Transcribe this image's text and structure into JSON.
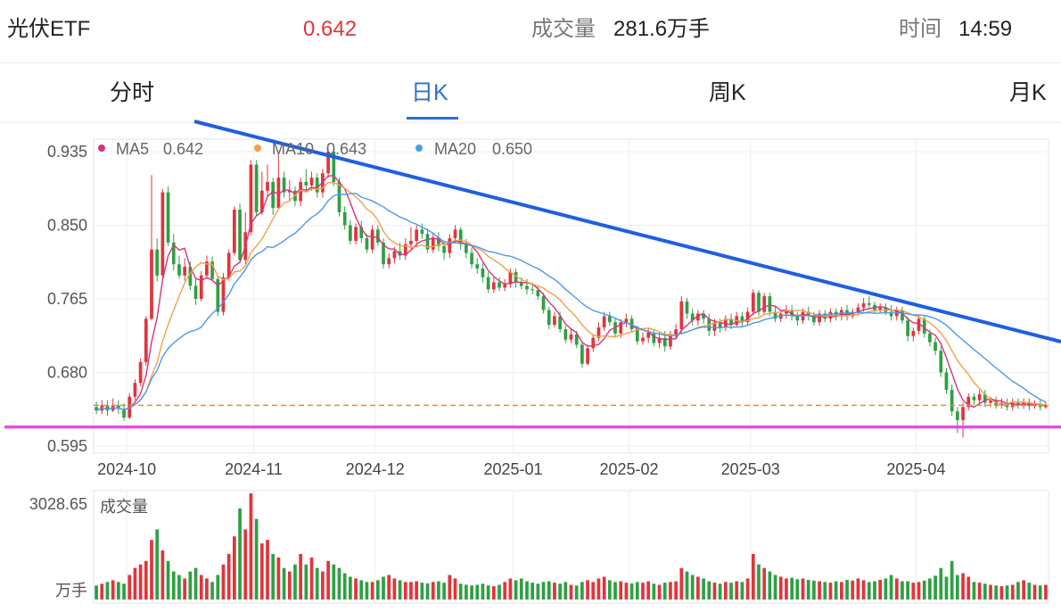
{
  "header": {
    "name": "光伏ETF",
    "price": "0.642",
    "volume_label": "成交量",
    "volume_value": "281.6万手",
    "time_label": "时间",
    "time_value": "14:59"
  },
  "tabs": [
    {
      "label": "分时",
      "active": false
    },
    {
      "label": "日K",
      "active": true
    },
    {
      "label": "周K",
      "active": false
    },
    {
      "label": "月K",
      "active": false
    }
  ],
  "legend": {
    "ma5": {
      "label": "MA5",
      "value": "0.642",
      "color": "#d6337e"
    },
    "ma10": {
      "label": "MA10",
      "value": "0.643",
      "color": "#f0a04b"
    },
    "ma20": {
      "label": "MA20",
      "value": "0.650",
      "color": "#4a9be8"
    }
  },
  "colors": {
    "up": "#e0353b",
    "down": "#2ea043",
    "price": "#e0353b",
    "active_tab": "#2b6fd6",
    "trendline": "#1f5fe0",
    "support": "#e64ce6",
    "last_price_line": "#f08a24"
  },
  "volume_panel": {
    "label": "成交量",
    "max_label": "3028.65",
    "unit": "万手"
  },
  "chart_data": {
    "type": "candlestick",
    "y_ticks": [
      "0.935",
      "0.850",
      "0.765",
      "0.680",
      "0.595"
    ],
    "ylim": [
      0.595,
      0.935
    ],
    "x_ticks": [
      "2024-10",
      "2024-11",
      "2024-12",
      "2025-01",
      "2025-02",
      "2025-03",
      "2025-04"
    ],
    "last_price": 0.642,
    "support_level": 0.617,
    "trendline": [
      {
        "date": "2024-10-14",
        "price": 0.952
      },
      {
        "date": "2025-04-30",
        "price": 0.701
      }
    ],
    "volume_max": 3028.65,
    "candles": [
      [
        0.64,
        0.636,
        0.646,
        0.632,
        400
      ],
      [
        0.636,
        0.642,
        0.648,
        0.632,
        450
      ],
      [
        0.642,
        0.636,
        0.648,
        0.63,
        500
      ],
      [
        0.636,
        0.642,
        0.65,
        0.634,
        550
      ],
      [
        0.642,
        0.638,
        0.648,
        0.632,
        500
      ],
      [
        0.638,
        0.628,
        0.644,
        0.624,
        450
      ],
      [
        0.628,
        0.652,
        0.656,
        0.626,
        700
      ],
      [
        0.652,
        0.668,
        0.672,
        0.648,
        900
      ],
      [
        0.668,
        0.692,
        0.696,
        0.664,
        1000
      ],
      [
        0.692,
        0.742,
        0.745,
        0.688,
        1100
      ],
      [
        0.742,
        0.822,
        0.908,
        0.74,
        1700
      ],
      [
        0.822,
        0.792,
        0.835,
        0.785,
        2000
      ],
      [
        0.792,
        0.888,
        0.892,
        0.788,
        1400
      ],
      [
        0.888,
        0.83,
        0.895,
        0.826,
        1100
      ],
      [
        0.83,
        0.805,
        0.84,
        0.798,
        800
      ],
      [
        0.805,
        0.792,
        0.815,
        0.788,
        700
      ],
      [
        0.792,
        0.802,
        0.812,
        0.786,
        600
      ],
      [
        0.802,
        0.78,
        0.808,
        0.775,
        800
      ],
      [
        0.78,
        0.765,
        0.788,
        0.758,
        900
      ],
      [
        0.765,
        0.792,
        0.797,
        0.762,
        700
      ],
      [
        0.792,
        0.808,
        0.815,
        0.788,
        600
      ],
      [
        0.808,
        0.788,
        0.814,
        0.785,
        500
      ],
      [
        0.788,
        0.75,
        0.792,
        0.745,
        700
      ],
      [
        0.75,
        0.79,
        0.795,
        0.746,
        1000
      ],
      [
        0.79,
        0.818,
        0.822,
        0.786,
        1300
      ],
      [
        0.818,
        0.868,
        0.872,
        0.815,
        1800
      ],
      [
        0.868,
        0.81,
        0.875,
        0.806,
        2600
      ],
      [
        0.81,
        0.842,
        0.865,
        0.805,
        2000
      ],
      [
        0.842,
        0.92,
        0.925,
        0.838,
        3028
      ],
      [
        0.92,
        0.865,
        0.925,
        0.86,
        2300
      ],
      [
        0.865,
        0.89,
        0.912,
        0.862,
        1600
      ],
      [
        0.89,
        0.9,
        0.92,
        0.882,
        1700
      ],
      [
        0.9,
        0.87,
        0.905,
        0.862,
        1300
      ],
      [
        0.87,
        0.905,
        0.932,
        0.868,
        1200
      ],
      [
        0.905,
        0.888,
        0.912,
        0.882,
        900
      ],
      [
        0.888,
        0.89,
        0.902,
        0.878,
        800
      ],
      [
        0.89,
        0.878,
        0.895,
        0.872,
        1000
      ],
      [
        0.878,
        0.9,
        0.905,
        0.872,
        1300
      ],
      [
        0.9,
        0.896,
        0.915,
        0.888,
        1000
      ],
      [
        0.896,
        0.905,
        0.912,
        0.89,
        1200
      ],
      [
        0.905,
        0.888,
        0.91,
        0.882,
        900
      ],
      [
        0.888,
        0.91,
        0.915,
        0.882,
        800
      ],
      [
        0.91,
        0.935,
        0.938,
        0.905,
        1100
      ],
      [
        0.935,
        0.9,
        0.938,
        0.895,
        1000
      ],
      [
        0.9,
        0.865,
        0.905,
        0.86,
        900
      ],
      [
        0.865,
        0.85,
        0.872,
        0.845,
        750
      ],
      [
        0.85,
        0.832,
        0.856,
        0.828,
        650
      ],
      [
        0.832,
        0.848,
        0.852,
        0.828,
        600
      ],
      [
        0.848,
        0.835,
        0.855,
        0.83,
        550
      ],
      [
        0.835,
        0.822,
        0.84,
        0.818,
        500
      ],
      [
        0.822,
        0.845,
        0.85,
        0.818,
        500
      ],
      [
        0.845,
        0.83,
        0.85,
        0.826,
        550
      ],
      [
        0.83,
        0.805,
        0.835,
        0.8,
        650
      ],
      [
        0.805,
        0.812,
        0.818,
        0.8,
        700
      ],
      [
        0.812,
        0.82,
        0.825,
        0.806,
        600
      ],
      [
        0.82,
        0.815,
        0.83,
        0.81,
        550
      ],
      [
        0.815,
        0.828,
        0.835,
        0.81,
        500
      ],
      [
        0.828,
        0.832,
        0.848,
        0.822,
        500
      ],
      [
        0.832,
        0.845,
        0.85,
        0.826,
        520
      ],
      [
        0.845,
        0.84,
        0.852,
        0.834,
        480
      ],
      [
        0.84,
        0.822,
        0.846,
        0.818,
        460
      ],
      [
        0.822,
        0.836,
        0.84,
        0.818,
        500
      ],
      [
        0.836,
        0.826,
        0.842,
        0.82,
        520
      ],
      [
        0.826,
        0.818,
        0.832,
        0.81,
        480
      ],
      [
        0.818,
        0.835,
        0.84,
        0.812,
        700
      ],
      [
        0.835,
        0.845,
        0.85,
        0.83,
        600
      ],
      [
        0.845,
        0.828,
        0.848,
        0.822,
        450
      ],
      [
        0.828,
        0.818,
        0.834,
        0.812,
        420
      ],
      [
        0.818,
        0.805,
        0.824,
        0.8,
        400
      ],
      [
        0.805,
        0.8,
        0.812,
        0.794,
        420
      ],
      [
        0.8,
        0.79,
        0.806,
        0.784,
        450
      ],
      [
        0.79,
        0.776,
        0.796,
        0.772,
        400
      ],
      [
        0.776,
        0.784,
        0.79,
        0.772,
        380
      ],
      [
        0.784,
        0.778,
        0.79,
        0.774,
        420
      ],
      [
        0.778,
        0.782,
        0.788,
        0.774,
        500
      ],
      [
        0.782,
        0.796,
        0.8,
        0.778,
        600
      ],
      [
        0.796,
        0.784,
        0.8,
        0.778,
        550
      ],
      [
        0.784,
        0.78,
        0.79,
        0.776,
        600
      ],
      [
        0.78,
        0.776,
        0.788,
        0.77,
        520
      ],
      [
        0.776,
        0.775,
        0.784,
        0.77,
        480
      ],
      [
        0.775,
        0.768,
        0.78,
        0.764,
        450
      ],
      [
        0.768,
        0.752,
        0.772,
        0.748,
        500
      ],
      [
        0.752,
        0.735,
        0.756,
        0.73,
        520
      ],
      [
        0.735,
        0.745,
        0.75,
        0.732,
        480
      ],
      [
        0.745,
        0.73,
        0.75,
        0.726,
        450
      ],
      [
        0.73,
        0.718,
        0.734,
        0.714,
        500
      ],
      [
        0.718,
        0.724,
        0.73,
        0.714,
        420
      ],
      [
        0.724,
        0.712,
        0.728,
        0.708,
        400
      ],
      [
        0.712,
        0.69,
        0.716,
        0.686,
        500
      ],
      [
        0.69,
        0.708,
        0.712,
        0.688,
        550
      ],
      [
        0.708,
        0.72,
        0.724,
        0.704,
        500
      ],
      [
        0.72,
        0.732,
        0.738,
        0.716,
        600
      ],
      [
        0.732,
        0.745,
        0.75,
        0.728,
        650
      ],
      [
        0.745,
        0.738,
        0.75,
        0.734,
        550
      ],
      [
        0.738,
        0.725,
        0.742,
        0.72,
        500
      ],
      [
        0.725,
        0.738,
        0.742,
        0.72,
        520
      ],
      [
        0.738,
        0.742,
        0.748,
        0.732,
        480
      ],
      [
        0.742,
        0.73,
        0.746,
        0.726,
        460
      ],
      [
        0.73,
        0.716,
        0.734,
        0.712,
        500
      ],
      [
        0.716,
        0.72,
        0.726,
        0.712,
        480
      ],
      [
        0.72,
        0.726,
        0.732,
        0.714,
        520
      ],
      [
        0.726,
        0.714,
        0.73,
        0.71,
        450
      ],
      [
        0.714,
        0.72,
        0.726,
        0.708,
        420
      ],
      [
        0.72,
        0.71,
        0.728,
        0.704,
        480
      ],
      [
        0.71,
        0.722,
        0.728,
        0.706,
        500
      ],
      [
        0.722,
        0.73,
        0.736,
        0.718,
        520
      ],
      [
        0.73,
        0.762,
        0.768,
        0.726,
        900
      ],
      [
        0.762,
        0.748,
        0.766,
        0.742,
        800
      ],
      [
        0.748,
        0.74,
        0.754,
        0.734,
        700
      ],
      [
        0.74,
        0.748,
        0.752,
        0.734,
        650
      ],
      [
        0.748,
        0.742,
        0.752,
        0.736,
        600
      ],
      [
        0.742,
        0.728,
        0.748,
        0.722,
        520
      ],
      [
        0.728,
        0.738,
        0.742,
        0.722,
        480
      ],
      [
        0.738,
        0.732,
        0.742,
        0.726,
        450
      ],
      [
        0.732,
        0.742,
        0.746,
        0.728,
        500
      ],
      [
        0.742,
        0.735,
        0.748,
        0.73,
        480
      ],
      [
        0.735,
        0.745,
        0.75,
        0.732,
        520
      ],
      [
        0.745,
        0.738,
        0.75,
        0.732,
        500
      ],
      [
        0.738,
        0.75,
        0.755,
        0.734,
        600
      ],
      [
        0.75,
        0.772,
        0.776,
        0.746,
        1300
      ],
      [
        0.772,
        0.75,
        0.775,
        0.745,
        1000
      ],
      [
        0.75,
        0.768,
        0.772,
        0.746,
        900
      ],
      [
        0.768,
        0.75,
        0.772,
        0.745,
        800
      ],
      [
        0.75,
        0.742,
        0.756,
        0.738,
        700
      ],
      [
        0.742,
        0.748,
        0.752,
        0.738,
        650
      ],
      [
        0.748,
        0.752,
        0.758,
        0.742,
        600
      ],
      [
        0.752,
        0.745,
        0.758,
        0.74,
        620
      ],
      [
        0.745,
        0.74,
        0.75,
        0.734,
        580
      ],
      [
        0.74,
        0.75,
        0.754,
        0.736,
        600
      ],
      [
        0.75,
        0.745,
        0.756,
        0.74,
        560
      ],
      [
        0.745,
        0.738,
        0.75,
        0.734,
        540
      ],
      [
        0.738,
        0.748,
        0.752,
        0.734,
        520
      ],
      [
        0.748,
        0.742,
        0.752,
        0.738,
        500
      ],
      [
        0.742,
        0.75,
        0.754,
        0.738,
        480
      ],
      [
        0.75,
        0.745,
        0.754,
        0.74,
        520
      ],
      [
        0.745,
        0.752,
        0.756,
        0.74,
        500
      ],
      [
        0.752,
        0.745,
        0.758,
        0.74,
        560
      ],
      [
        0.745,
        0.75,
        0.754,
        0.742,
        540
      ],
      [
        0.75,
        0.755,
        0.76,
        0.746,
        600
      ],
      [
        0.755,
        0.76,
        0.766,
        0.75,
        550
      ],
      [
        0.76,
        0.758,
        0.768,
        0.754,
        500
      ],
      [
        0.758,
        0.752,
        0.762,
        0.748,
        520
      ],
      [
        0.752,
        0.755,
        0.76,
        0.748,
        560
      ],
      [
        0.755,
        0.75,
        0.76,
        0.746,
        600
      ],
      [
        0.75,
        0.745,
        0.758,
        0.74,
        700
      ],
      [
        0.745,
        0.752,
        0.756,
        0.74,
        600
      ],
      [
        0.752,
        0.74,
        0.756,
        0.736,
        520
      ],
      [
        0.74,
        0.722,
        0.744,
        0.716,
        520
      ],
      [
        0.722,
        0.728,
        0.732,
        0.716,
        480
      ],
      [
        0.728,
        0.742,
        0.746,
        0.724,
        500
      ],
      [
        0.742,
        0.725,
        0.746,
        0.72,
        540
      ],
      [
        0.725,
        0.715,
        0.73,
        0.71,
        600
      ],
      [
        0.715,
        0.705,
        0.72,
        0.7,
        680
      ],
      [
        0.705,
        0.68,
        0.71,
        0.675,
        900
      ],
      [
        0.68,
        0.66,
        0.685,
        0.655,
        650
      ],
      [
        0.66,
        0.635,
        0.666,
        0.63,
        1100
      ],
      [
        0.635,
        0.625,
        0.64,
        0.61,
        700
      ],
      [
        0.625,
        0.64,
        0.645,
        0.605,
        750
      ],
      [
        0.64,
        0.652,
        0.656,
        0.636,
        650
      ],
      [
        0.652,
        0.648,
        0.656,
        0.642,
        500
      ],
      [
        0.648,
        0.655,
        0.66,
        0.644,
        480
      ],
      [
        0.655,
        0.645,
        0.66,
        0.64,
        450
      ],
      [
        0.645,
        0.648,
        0.652,
        0.64,
        420
      ],
      [
        0.648,
        0.642,
        0.652,
        0.638,
        400
      ],
      [
        0.642,
        0.645,
        0.65,
        0.638,
        380
      ],
      [
        0.645,
        0.64,
        0.65,
        0.636,
        400
      ],
      [
        0.64,
        0.645,
        0.65,
        0.636,
        420
      ],
      [
        0.645,
        0.642,
        0.65,
        0.638,
        500
      ],
      [
        0.642,
        0.646,
        0.65,
        0.638,
        550
      ],
      [
        0.646,
        0.641,
        0.65,
        0.636,
        480
      ],
      [
        0.641,
        0.644,
        0.648,
        0.638,
        420
      ],
      [
        0.644,
        0.64,
        0.648,
        0.636,
        400
      ],
      [
        0.64,
        0.642,
        0.646,
        0.638,
        420
      ]
    ]
  }
}
